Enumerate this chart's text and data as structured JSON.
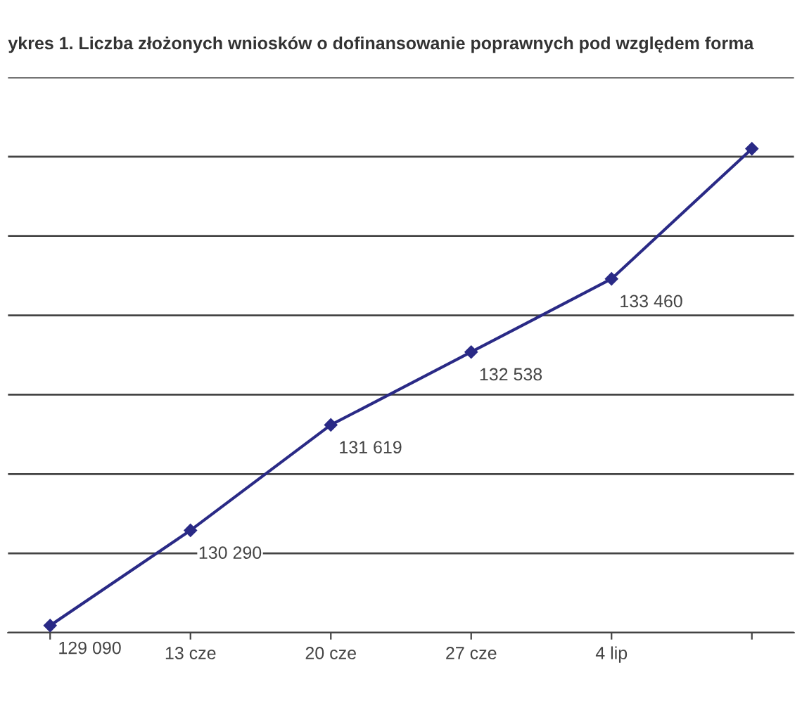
{
  "chart_data": {
    "type": "line",
    "title": "ykres 1. Liczba złożonych wniosków o dofinansowanie poprawnych pod względem forma",
    "categories": [
      null,
      "13 cze",
      "20 cze",
      "27 cze",
      "4 lip",
      null
    ],
    "series": [
      {
        "color": "#2a2a86",
        "values": [
          129090,
          130290,
          131619,
          132538,
          133460,
          135100
        ],
        "value_labels": [
          "129 090",
          "130 290",
          "131 619",
          "132 538",
          "133 460",
          null
        ]
      }
    ],
    "ylim": [
      129000,
      136000
    ],
    "yticks": [
      {
        "value": 129000,
        "label": null
      },
      {
        "value": 130000,
        "label": null
      },
      {
        "value": 131000,
        "label": null
      },
      {
        "value": 132000,
        "label": null
      },
      {
        "value": 133000,
        "label": null
      },
      {
        "value": 134000,
        "label": null
      },
      {
        "value": 135000,
        "label": null
      },
      {
        "value": 136000,
        "label": null
      }
    ],
    "grid": "y",
    "marker": "diamond",
    "line_style": "solid"
  }
}
